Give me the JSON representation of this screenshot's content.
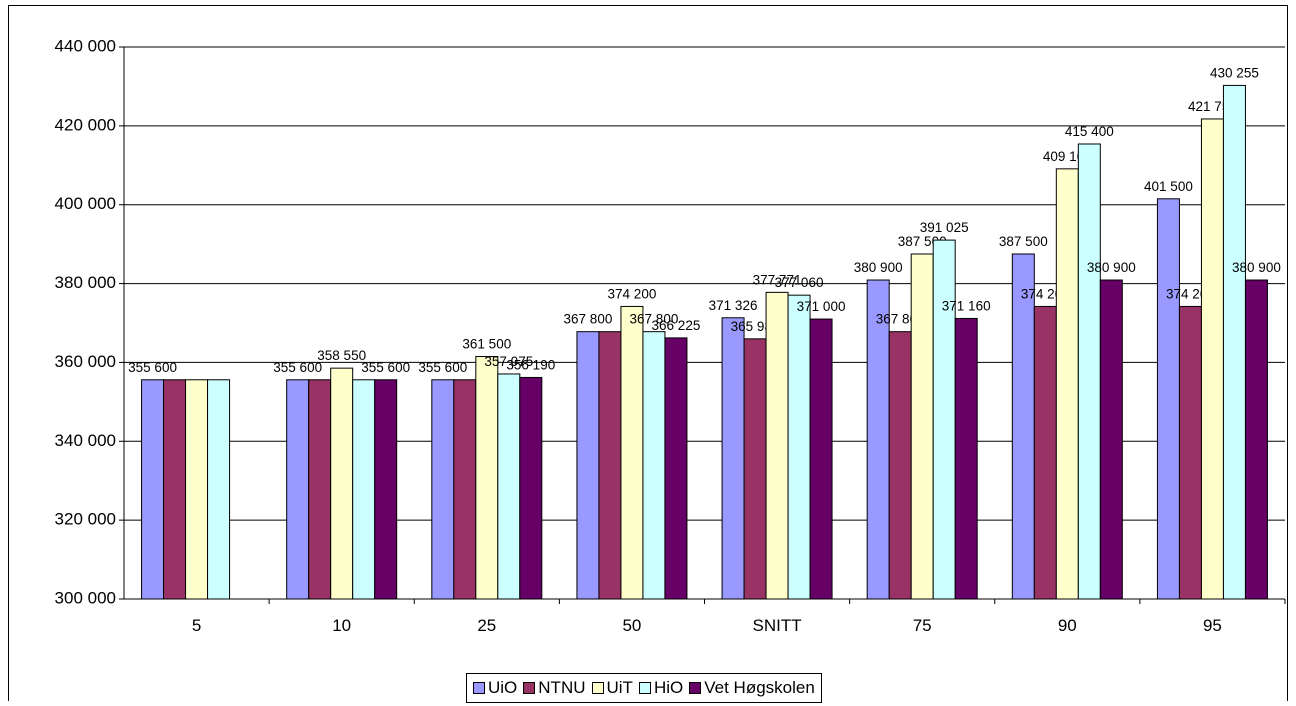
{
  "chart_data": {
    "type": "bar",
    "categories": [
      "5",
      "10",
      "25",
      "50",
      "SNITT",
      "75",
      "90",
      "95"
    ],
    "ylim": [
      300000,
      440000
    ],
    "yticks": [
      300000,
      320000,
      340000,
      360000,
      380000,
      400000,
      420000,
      440000
    ],
    "ytick_labels": [
      "300 000",
      "320 000",
      "340 000",
      "360 000",
      "380 000",
      "400 000",
      "420 000",
      "440 000"
    ],
    "grid": true,
    "legend_position": "bottom",
    "series": [
      {
        "name": "UiO",
        "color": "#9999ff",
        "values": [
          355600,
          355600,
          355600,
          367800,
          371326,
          380900,
          387500,
          401500
        ],
        "labels": [
          "355 600",
          "355 600",
          "355 600",
          "367 800",
          "371 326",
          "380 900",
          "387 500",
          "401 500"
        ]
      },
      {
        "name": "NTNU",
        "color": "#993366",
        "values": [
          355600,
          355600,
          355600,
          367800,
          365986,
          367800,
          374200,
          374200
        ],
        "labels": [
          "",
          "",
          "",
          "",
          "365 986",
          "367 800",
          "374 200",
          "374 200"
        ]
      },
      {
        "name": "UiT",
        "color": "#ffffcc",
        "values": [
          355600,
          358550,
          361500,
          374200,
          377771,
          387500,
          409100,
          421750
        ],
        "labels": [
          "",
          "358 550",
          "361 500",
          "374 200",
          "377 771",
          "387 500",
          "409 100",
          "421 750"
        ]
      },
      {
        "name": "HiO",
        "color": "#ccffff",
        "values": [
          355600,
          355600,
          357075,
          367800,
          377060,
          391025,
          415400,
          430255
        ],
        "labels": [
          "",
          "",
          "357 075",
          "367 800",
          "377 060",
          "391 025",
          "415 400",
          "430 255"
        ]
      },
      {
        "name": "Vet Høgskolen",
        "color": "#660066",
        "values": [
          null,
          355600,
          356190,
          366225,
          371000,
          371160,
          380900,
          380900
        ],
        "labels": [
          "",
          "355 600",
          "356 190",
          "366 225",
          "371 000",
          "371 160",
          "380 900",
          "380 900"
        ]
      }
    ]
  }
}
